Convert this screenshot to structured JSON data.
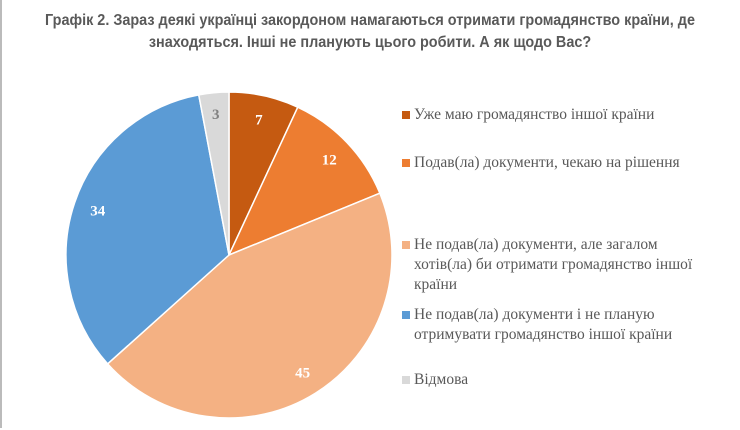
{
  "chart_data": {
    "type": "pie",
    "title": "Графік 2. Зараз деякі українці закордоном намагаються отримати громадянство країни, де знаходяться. Інші не планують цього робити. А як щодо Вас?",
    "legend_position": "right",
    "slices": [
      {
        "label": "Уже маю громадянство іншої країни",
        "value": 7,
        "color": "#C55A11",
        "label_color": "#FFFFFF"
      },
      {
        "label": "Подав(ла) документи, чекаю на рішення",
        "value": 12,
        "color": "#ED7D31",
        "label_color": "#FFFFFF"
      },
      {
        "label": "Не подав(ла) документи, але загалом хотів(ла) би отримати громадянство іншої країни",
        "value": 45,
        "color": "#F4B183",
        "label_color": "#FFFFFF"
      },
      {
        "label": "Не подав(ла) документи і не планую отримувати громадянство іншої країни",
        "value": 34,
        "color": "#5B9BD5",
        "label_color": "#FFFFFF"
      },
      {
        "label": "Відмова",
        "value": 3,
        "color": "#D9D9D9",
        "label_color": "#808080"
      }
    ]
  }
}
